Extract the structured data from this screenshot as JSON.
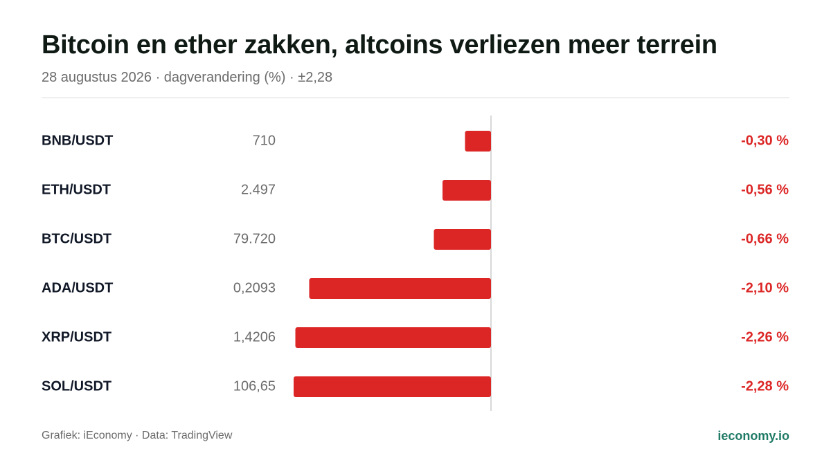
{
  "header": {
    "title": "Bitcoin en ether zakken, altcoins verliezen meer terrein",
    "subtitle": "28 augustus 2026 · dagverandering (%) · ±2,28"
  },
  "footer": {
    "credit": "Grafiek: iEconomy · Data: TradingView",
    "brand": "ieconomy.io"
  },
  "colors": {
    "negative": "#dc2626",
    "label": "#111827",
    "price": "#6b6b6b",
    "axis": "#d9d9d9",
    "brand": "#1f7a66"
  },
  "chart_data": {
    "type": "bar",
    "orientation": "horizontal",
    "xlim": [
      -2.28,
      2.28
    ],
    "grid": false,
    "rows": [
      {
        "pair": "BNB/USDT",
        "price": "710",
        "value": -0.3,
        "value_label": "-0,30 %"
      },
      {
        "pair": "ETH/USDT",
        "price": "2.497",
        "value": -0.56,
        "value_label": "-0,56 %"
      },
      {
        "pair": "BTC/USDT",
        "price": "79.720",
        "value": -0.66,
        "value_label": "-0,66 %"
      },
      {
        "pair": "ADA/USDT",
        "price": "0,2093",
        "value": -2.1,
        "value_label": "-2,10 %"
      },
      {
        "pair": "XRP/USDT",
        "price": "1,4206",
        "value": -2.26,
        "value_label": "-2,26 %"
      },
      {
        "pair": "SOL/USDT",
        "price": "106,65",
        "value": -2.28,
        "value_label": "-2,28 %"
      }
    ]
  }
}
